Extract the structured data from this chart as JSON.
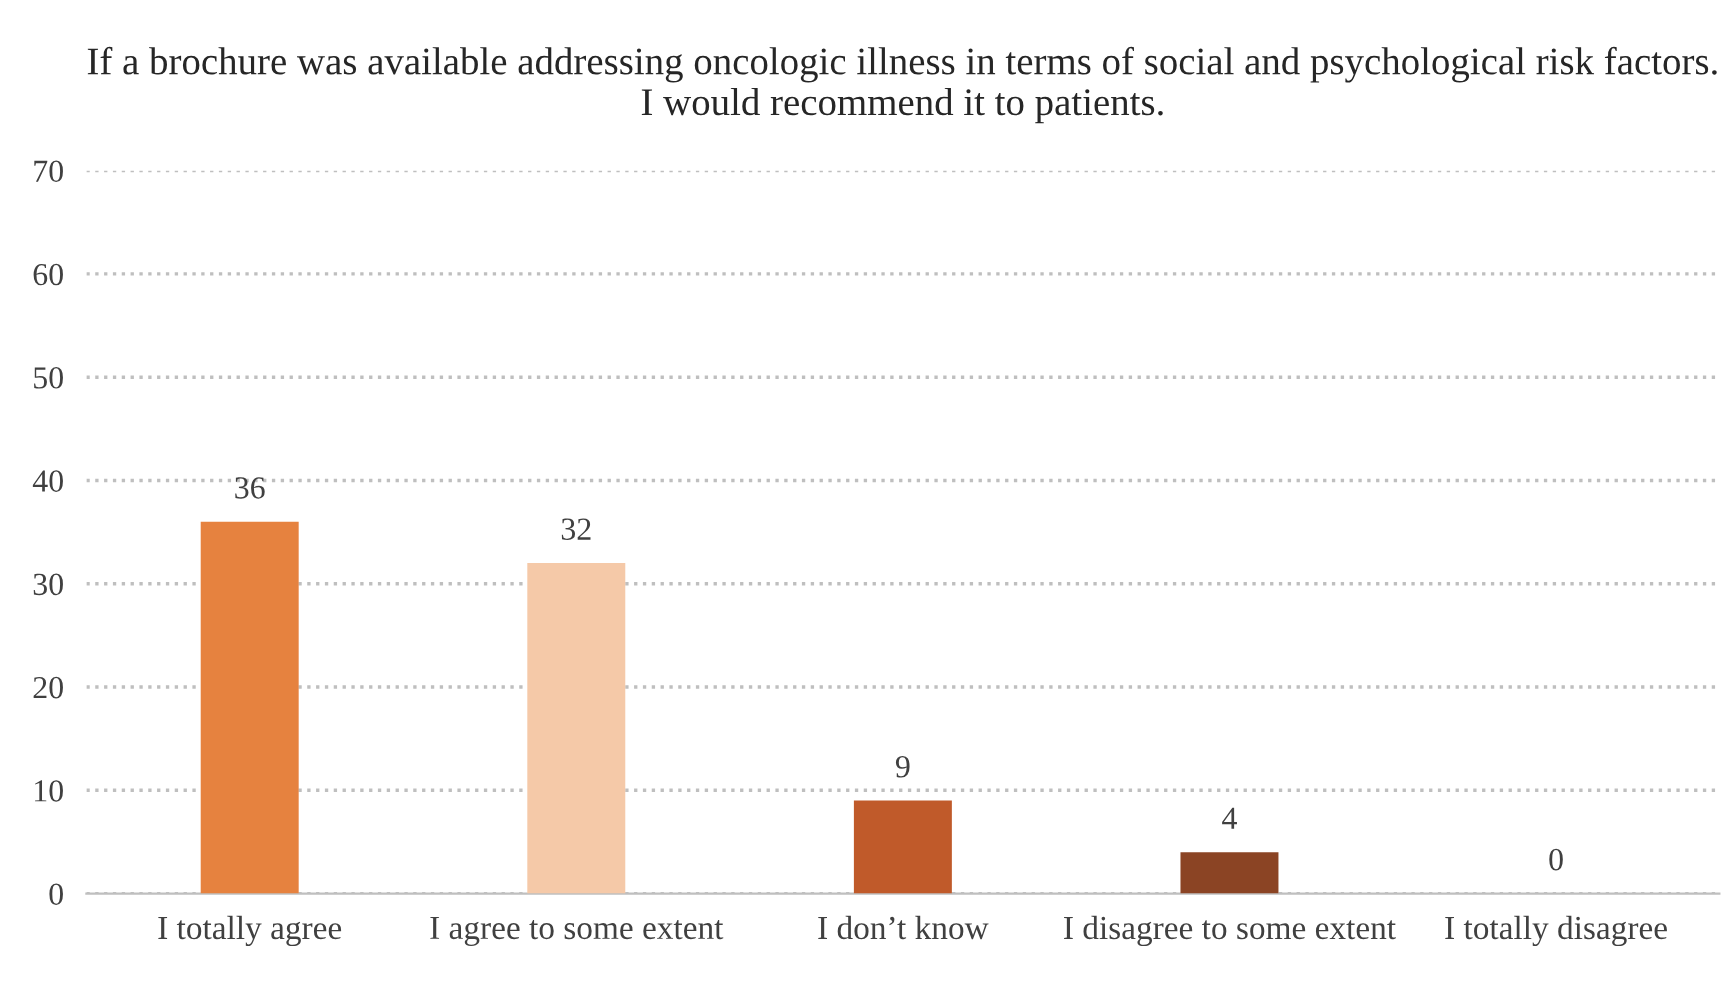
{
  "chart_data": {
    "type": "bar",
    "title": "If a brochure was available addressing oncologic illness in terms of social and psychological risk factors. I would recommend it to patients.",
    "categories": [
      "I totally agree",
      "I agree to some extent",
      "I don’t know",
      "I disagree to some extent",
      "I totally disagree"
    ],
    "values": [
      36,
      32,
      9,
      4,
      0
    ],
    "colors": [
      "#e6823f",
      "#f5c9a8",
      "#c05a2a",
      "#8b4424",
      "#6e3a1e"
    ],
    "ylim": [
      0,
      70
    ],
    "yticks": [
      0,
      10,
      20,
      30,
      40,
      50,
      60,
      70
    ],
    "grid": "y",
    "data_labels": true,
    "legend": false
  }
}
